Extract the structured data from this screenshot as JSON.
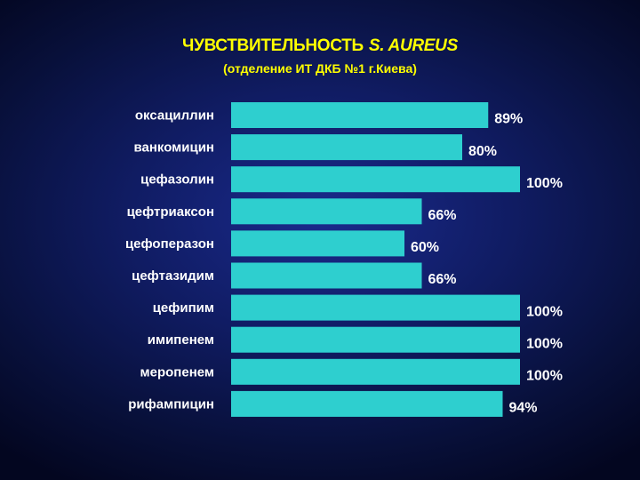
{
  "title": {
    "main": "ЧУВСТВИТЕЛЬНОСТЬ",
    "organism": "S. AUREUS",
    "subtitle": "(отделение ИТ ДКБ №1 г.Киева)"
  },
  "colors": {
    "bar": "#2ecfcf",
    "title": "#ffff00",
    "text": "#ffffff",
    "background": "#101c63"
  },
  "chart_data": {
    "type": "bar",
    "orientation": "horizontal",
    "title": "ЧУВСТВИТЕЛЬНОСТЬ S. AUREUS",
    "subtitle": "(отделение ИТ ДКБ №1 г.Киева)",
    "categories": [
      "оксациллин",
      "ванкомицин",
      "цефазолин",
      "цефтриаксон",
      "цефоперазон",
      "цефтазидим",
      "цефипим",
      "имипенем",
      "меропенем",
      "рифампицин"
    ],
    "values": [
      89,
      80,
      100,
      66,
      60,
      66,
      100,
      100,
      100,
      94
    ],
    "value_labels": [
      "89%",
      "80%",
      "100%",
      "66%",
      "60%",
      "66%",
      "100%",
      "100%",
      "100%",
      "94%"
    ],
    "xlim": [
      0,
      100
    ],
    "xlabel": "",
    "ylabel": "",
    "grid": false,
    "legend": "none"
  }
}
